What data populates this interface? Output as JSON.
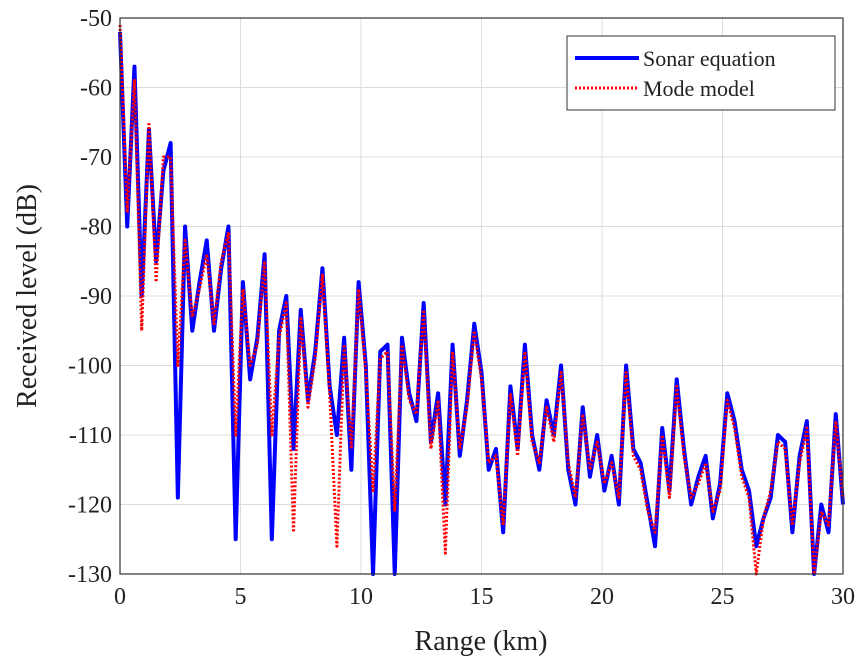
{
  "chart_data": {
    "type": "line",
    "xlabel": "Range (km)",
    "ylabel": "Received level (dB)",
    "x": [
      0,
      0.3,
      0.6,
      0.9,
      1.2,
      1.5,
      1.8,
      2.1,
      2.4,
      2.7,
      3,
      3.3,
      3.6,
      3.9,
      4.2,
      4.5,
      4.8,
      5.1,
      5.4,
      5.7,
      6,
      6.3,
      6.6,
      6.9,
      7.2,
      7.5,
      7.8,
      8.1,
      8.4,
      8.7,
      9,
      9.3,
      9.6,
      9.9,
      10.2,
      10.5,
      10.8,
      11.1,
      11.4,
      11.7,
      12,
      12.3,
      12.6,
      12.9,
      13.2,
      13.5,
      13.8,
      14.1,
      14.4,
      14.7,
      15,
      15.3,
      15.6,
      15.9,
      16.2,
      16.5,
      16.8,
      17.1,
      17.4,
      17.7,
      18,
      18.3,
      18.6,
      18.9,
      19.2,
      19.5,
      19.8,
      20.1,
      20.4,
      20.7,
      21,
      21.3,
      21.6,
      21.9,
      22.2,
      22.5,
      22.8,
      23.1,
      23.4,
      23.7,
      24,
      24.3,
      24.6,
      24.9,
      25.2,
      25.5,
      25.8,
      26.1,
      26.4,
      26.7,
      27,
      27.3,
      27.6,
      27.9,
      28.2,
      28.5,
      28.8,
      29.1,
      29.4,
      29.7,
      30
    ],
    "series": [
      {
        "name": "Sonar equation",
        "color": "#0000ff",
        "style": "solid",
        "values": [
          -52,
          -80,
          -57,
          -90,
          -66,
          -85,
          -72,
          -68,
          -119,
          -80,
          -95,
          -88,
          -82,
          -95,
          -86,
          -80,
          -125,
          -88,
          -102,
          -96,
          -84,
          -125,
          -95,
          -90,
          -112,
          -92,
          -105,
          -98,
          -86,
          -103,
          -110,
          -96,
          -115,
          -88,
          -100,
          -130,
          -98,
          -97,
          -130,
          -96,
          -104,
          -108,
          -91,
          -111,
          -104,
          -120,
          -97,
          -113,
          -105,
          -94,
          -101,
          -115,
          -112,
          -124,
          -103,
          -112,
          -97,
          -110,
          -115,
          -105,
          -110,
          -100,
          -115,
          -120,
          -106,
          -116,
          -110,
          -118,
          -113,
          -120,
          -100,
          -112,
          -114,
          -120,
          -126,
          -109,
          -118,
          -102,
          -112,
          -120,
          -116,
          -113,
          -122,
          -117,
          -104,
          -108,
          -115,
          -118,
          -126,
          -122,
          -119,
          -110,
          -111,
          -124,
          -113,
          -108,
          -130,
          -120,
          -124,
          -107,
          -120
        ]
      },
      {
        "name": "Mode model",
        "color": "#ff0000",
        "style": "dotted",
        "values": [
          -51,
          -78,
          -59,
          -95,
          -65,
          -88,
          -70,
          -70,
          -100,
          -82,
          -93,
          -89,
          -84,
          -94,
          -85,
          -81,
          -110,
          -89,
          -100,
          -97,
          -85,
          -110,
          -96,
          -91,
          -124,
          -93,
          -106,
          -99,
          -87,
          -104,
          -126,
          -97,
          -112,
          -89,
          -101,
          -118,
          -99,
          -98,
          -121,
          -97,
          -105,
          -107,
          -92,
          -112,
          -105,
          -127,
          -98,
          -112,
          -106,
          -95,
          -102,
          -114,
          -113,
          -123,
          -104,
          -113,
          -98,
          -111,
          -114,
          -106,
          -111,
          -101,
          -114,
          -119,
          -107,
          -115,
          -111,
          -117,
          -114,
          -119,
          -101,
          -113,
          -115,
          -121,
          -124,
          -110,
          -119,
          -103,
          -113,
          -119,
          -117,
          -114,
          -121,
          -118,
          -105,
          -109,
          -116,
          -119,
          -130,
          -122,
          -118,
          -111,
          -112,
          -123,
          -114,
          -109,
          -130,
          -121,
          -123,
          -108,
          -119
        ]
      }
    ],
    "xlim": [
      0,
      30
    ],
    "ylim": [
      -130,
      -50
    ],
    "xticks": [
      0,
      5,
      10,
      15,
      20,
      25,
      30
    ],
    "yticks": [
      -130,
      -120,
      -110,
      -100,
      -90,
      -80,
      -70,
      -60,
      -50
    ],
    "grid": true,
    "legend": "upper right"
  }
}
